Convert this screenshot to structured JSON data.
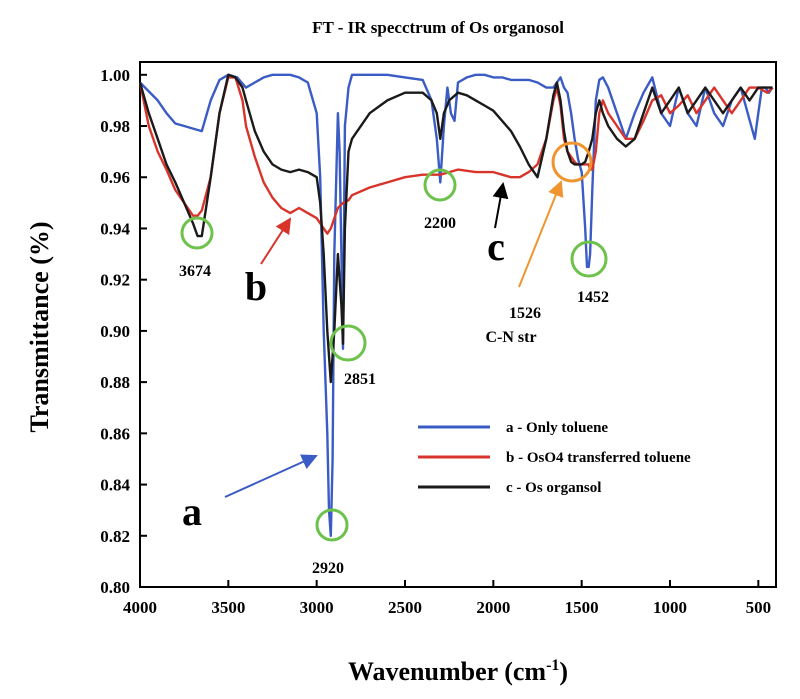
{
  "chart_data": {
    "type": "line",
    "title": "FT - IR specctrum of Os organosol",
    "xlabel": "Wavenumber (cm",
    "xlabel_sup": "-1",
    "xlabel_close": ")",
    "ylabel": "Transmittance (%)",
    "xlim": [
      4000,
      400
    ],
    "ylim": [
      0.8,
      1.005
    ],
    "x_ticks": [
      4000,
      3500,
      3000,
      2500,
      2000,
      1500,
      1000,
      500
    ],
    "y_ticks": [
      "0.80",
      "0.82",
      "0.84",
      "0.86",
      "0.88",
      "0.90",
      "0.92",
      "0.94",
      "0.96",
      "0.98",
      "1.00"
    ],
    "grid": false,
    "legend_position": "lower-right",
    "series": [
      {
        "name": "a - Only toluene",
        "label": "a",
        "color": "#3b5cc4",
        "x": [
          4000,
          3900,
          3850,
          3800,
          3750,
          3700,
          3650,
          3600,
          3550,
          3500,
          3450,
          3400,
          3350,
          3300,
          3250,
          3200,
          3150,
          3100,
          3050,
          3000,
          2980,
          2960,
          2940,
          2930,
          2920,
          2910,
          2900,
          2880,
          2870,
          2860,
          2851,
          2840,
          2820,
          2800,
          2700,
          2600,
          2500,
          2400,
          2350,
          2320,
          2300,
          2280,
          2260,
          2240,
          2220,
          2200,
          2150,
          2100,
          2050,
          2000,
          1950,
          1900,
          1850,
          1800,
          1750,
          1700,
          1660,
          1640,
          1620,
          1600,
          1580,
          1560,
          1540,
          1520,
          1500,
          1480,
          1470,
          1460,
          1452,
          1440,
          1420,
          1400,
          1380,
          1350,
          1300,
          1250,
          1200,
          1150,
          1100,
          1050,
          1000,
          950,
          900,
          850,
          800,
          750,
          700,
          650,
          600,
          560,
          520,
          500,
          480,
          460,
          440,
          420
        ],
        "y": [
          0.997,
          0.99,
          0.985,
          0.981,
          0.98,
          0.979,
          0.978,
          0.99,
          0.998,
          1.0,
          0.999,
          0.995,
          0.997,
          0.999,
          1.0,
          1.0,
          1.0,
          0.999,
          0.997,
          0.985,
          0.96,
          0.9,
          0.86,
          0.83,
          0.82,
          0.85,
          0.93,
          0.985,
          0.97,
          0.93,
          0.893,
          0.98,
          0.995,
          1.0,
          1.0,
          1.0,
          0.999,
          0.998,
          0.99,
          0.975,
          0.958,
          0.98,
          0.995,
          0.985,
          0.982,
          0.997,
          0.999,
          1.0,
          1.0,
          0.999,
          0.999,
          0.998,
          0.998,
          0.998,
          0.997,
          0.995,
          0.995,
          0.997,
          0.999,
          0.995,
          0.993,
          0.985,
          0.975,
          0.967,
          0.962,
          0.94,
          0.925,
          0.925,
          0.93,
          0.955,
          0.99,
          0.998,
          0.999,
          0.995,
          0.985,
          0.975,
          0.985,
          0.993,
          0.999,
          0.985,
          0.98,
          0.995,
          0.985,
          0.98,
          0.995,
          0.985,
          0.98,
          0.99,
          0.995,
          0.985,
          0.975,
          0.985,
          0.995,
          0.995,
          0.993,
          0.995
        ]
      },
      {
        "name": "b - OsO4 transferred toluene",
        "label": "b",
        "color": "#d8342b",
        "x": [
          4000,
          3950,
          3900,
          3850,
          3800,
          3750,
          3700,
          3674,
          3650,
          3600,
          3550,
          3500,
          3460,
          3420,
          3400,
          3350,
          3300,
          3250,
          3200,
          3150,
          3100,
          3050,
          3000,
          2980,
          2960,
          2940,
          2920,
          2900,
          2880,
          2851,
          2820,
          2800,
          2700,
          2600,
          2500,
          2400,
          2300,
          2200,
          2100,
          2000,
          1950,
          1900,
          1850,
          1800,
          1750,
          1700,
          1660,
          1640,
          1620,
          1600,
          1580,
          1560,
          1540,
          1526,
          1500,
          1480,
          1460,
          1452,
          1440,
          1420,
          1400,
          1380,
          1350,
          1300,
          1250,
          1200,
          1150,
          1100,
          1050,
          1000,
          950,
          900,
          850,
          800,
          750,
          700,
          650,
          600,
          550,
          500,
          450,
          420
        ],
        "y": [
          0.997,
          0.98,
          0.97,
          0.963,
          0.955,
          0.95,
          0.945,
          0.945,
          0.947,
          0.96,
          0.985,
          0.999,
          0.999,
          0.99,
          0.98,
          0.968,
          0.958,
          0.952,
          0.948,
          0.946,
          0.948,
          0.946,
          0.944,
          0.942,
          0.94,
          0.938,
          0.94,
          0.944,
          0.948,
          0.95,
          0.951,
          0.953,
          0.956,
          0.958,
          0.96,
          0.961,
          0.961,
          0.963,
          0.962,
          0.962,
          0.961,
          0.96,
          0.96,
          0.962,
          0.965,
          0.975,
          0.99,
          0.995,
          0.988,
          0.975,
          0.97,
          0.968,
          0.966,
          0.965,
          0.965,
          0.965,
          0.965,
          0.963,
          0.963,
          0.97,
          0.985,
          0.99,
          0.985,
          0.98,
          0.975,
          0.975,
          0.982,
          0.99,
          0.992,
          0.985,
          0.988,
          0.992,
          0.985,
          0.99,
          0.995,
          0.99,
          0.985,
          0.99,
          0.995,
          0.995,
          0.993,
          0.995
        ]
      },
      {
        "name": "c - Os organsol",
        "label": "c",
        "color": "#1a1a1a",
        "x": [
          4000,
          3950,
          3900,
          3850,
          3800,
          3750,
          3700,
          3674,
          3650,
          3600,
          3550,
          3500,
          3460,
          3420,
          3400,
          3350,
          3300,
          3250,
          3200,
          3150,
          3100,
          3050,
          3000,
          2980,
          2960,
          2940,
          2920,
          2900,
          2880,
          2860,
          2851,
          2840,
          2820,
          2800,
          2700,
          2600,
          2500,
          2400,
          2350,
          2320,
          2300,
          2280,
          2250,
          2200,
          2150,
          2100,
          2050,
          2000,
          1950,
          1900,
          1850,
          1800,
          1750,
          1700,
          1660,
          1640,
          1620,
          1600,
          1580,
          1560,
          1540,
          1526,
          1500,
          1480,
          1460,
          1440,
          1420,
          1400,
          1380,
          1350,
          1300,
          1250,
          1200,
          1150,
          1100,
          1050,
          1000,
          950,
          900,
          850,
          800,
          750,
          700,
          650,
          600,
          550,
          500,
          450,
          420
        ],
        "y": [
          0.997,
          0.985,
          0.975,
          0.965,
          0.958,
          0.95,
          0.942,
          0.937,
          0.937,
          0.96,
          0.985,
          1.0,
          0.999,
          0.995,
          0.99,
          0.978,
          0.97,
          0.965,
          0.963,
          0.962,
          0.963,
          0.962,
          0.96,
          0.95,
          0.93,
          0.9,
          0.88,
          0.9,
          0.93,
          0.91,
          0.895,
          0.94,
          0.97,
          0.975,
          0.985,
          0.99,
          0.993,
          0.993,
          0.99,
          0.985,
          0.975,
          0.985,
          0.99,
          0.993,
          0.992,
          0.99,
          0.988,
          0.986,
          0.982,
          0.978,
          0.972,
          0.965,
          0.96,
          0.975,
          0.992,
          0.997,
          0.99,
          0.978,
          0.97,
          0.966,
          0.965,
          0.965,
          0.965,
          0.966,
          0.97,
          0.975,
          0.985,
          0.99,
          0.985,
          0.98,
          0.975,
          0.972,
          0.975,
          0.985,
          0.995,
          0.985,
          0.99,
          0.995,
          0.985,
          0.99,
          0.995,
          0.99,
          0.985,
          0.99,
          0.995,
          0.99,
          0.995,
          0.995,
          0.995
        ]
      }
    ],
    "annotations": {
      "peak_3674": "3674",
      "peak_2920": "2920",
      "peak_2851": "2851",
      "peak_2200": "2200",
      "peak_1452": "1452",
      "peak_1526": "1526",
      "cn_str": "C-N str",
      "label_a": "a",
      "label_b": "b",
      "label_c": "c"
    }
  }
}
